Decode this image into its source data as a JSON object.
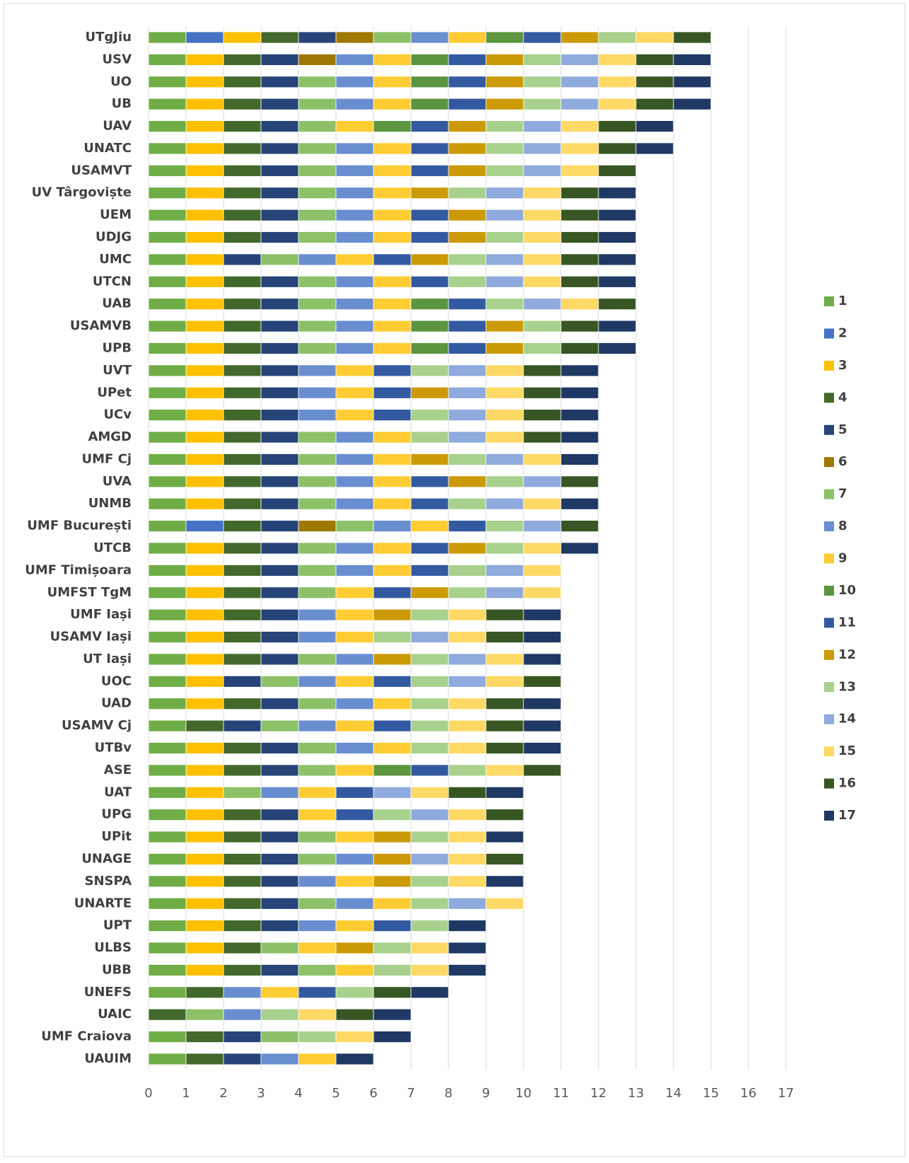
{
  "chart_data": {
    "type": "stacked_barh",
    "categories": [
      "UTgJiu",
      "USV",
      "UO",
      "UB",
      "UAV",
      "UNATC",
      "USAMVT",
      "UV Târgoviște",
      "UEM",
      "UDJG",
      "UMC",
      "UTCN",
      "UAB",
      "USAMVB",
      "UPB",
      "UVT",
      "UPet",
      "UCv",
      "AMGD",
      "UMF Cj",
      "UVA",
      "UNMB",
      "UMF București",
      "UTCB",
      "UMF Timișoara",
      "UMFST TgM",
      "UMF Iași",
      "USAMV Iași",
      "UT Iași",
      "UOC",
      "UAD",
      "USAMV Cj",
      "UTBv",
      "ASE",
      "UAT",
      "UPG",
      "UPit",
      "UNAGE",
      "SNSPA",
      "UNARTE",
      "UPT",
      "ULBS",
      "UBB",
      "UNEFS",
      "UAIC",
      "UMF Craiova",
      "UAUIM"
    ],
    "series": [
      {
        "name": "1",
        "color": "#70ad47",
        "values": [
          1,
          1,
          1,
          1,
          1,
          1,
          1,
          1,
          1,
          1,
          1,
          1,
          1,
          1,
          1,
          1,
          1,
          1,
          1,
          1,
          1,
          1,
          1,
          1,
          1,
          1,
          1,
          1,
          1,
          1,
          1,
          1,
          1,
          1,
          1,
          1,
          1,
          1,
          1,
          1,
          1,
          1,
          1,
          1,
          0,
          1,
          1
        ]
      },
      {
        "name": "2",
        "color": "#4472c4",
        "values": [
          1,
          0,
          0,
          0,
          0,
          0,
          0,
          0,
          0,
          0,
          0,
          0,
          0,
          0,
          0,
          0,
          0,
          0,
          0,
          0,
          0,
          0,
          1,
          0,
          0,
          0,
          0,
          0,
          0,
          0,
          0,
          0,
          0,
          0,
          0,
          0,
          0,
          0,
          0,
          0,
          0,
          0,
          0,
          0,
          0,
          0,
          0
        ]
      },
      {
        "name": "3",
        "color": "#ffc000",
        "values": [
          1,
          1,
          1,
          1,
          1,
          1,
          1,
          1,
          1,
          1,
          1,
          1,
          1,
          1,
          1,
          1,
          1,
          1,
          1,
          1,
          1,
          1,
          0,
          1,
          1,
          1,
          1,
          1,
          1,
          1,
          1,
          0,
          1,
          1,
          1,
          1,
          1,
          1,
          1,
          1,
          1,
          1,
          1,
          0,
          0,
          0,
          0
        ]
      },
      {
        "name": "4",
        "color": "#43682b",
        "values": [
          1,
          1,
          1,
          1,
          1,
          1,
          1,
          1,
          1,
          1,
          0,
          1,
          1,
          1,
          1,
          1,
          1,
          1,
          1,
          1,
          1,
          1,
          1,
          1,
          1,
          1,
          1,
          1,
          1,
          0,
          1,
          1,
          1,
          1,
          0,
          1,
          1,
          1,
          1,
          1,
          1,
          1,
          1,
          1,
          1,
          1,
          1
        ]
      },
      {
        "name": "5",
        "color": "#264478",
        "values": [
          1,
          1,
          1,
          1,
          1,
          1,
          1,
          1,
          1,
          1,
          1,
          1,
          1,
          1,
          1,
          1,
          1,
          1,
          1,
          1,
          1,
          1,
          1,
          1,
          1,
          1,
          1,
          1,
          1,
          1,
          1,
          1,
          1,
          1,
          0,
          1,
          1,
          1,
          1,
          1,
          1,
          0,
          1,
          0,
          0,
          1,
          1
        ]
      },
      {
        "name": "6",
        "color": "#9e7800",
        "values": [
          1,
          1,
          0,
          0,
          0,
          0,
          0,
          0,
          0,
          0,
          0,
          0,
          0,
          0,
          0,
          0,
          0,
          0,
          0,
          0,
          0,
          0,
          1,
          0,
          0,
          0,
          0,
          0,
          0,
          0,
          0,
          0,
          0,
          0,
          0,
          0,
          0,
          0,
          0,
          0,
          0,
          0,
          0,
          0,
          0,
          0,
          0
        ]
      },
      {
        "name": "7",
        "color": "#8cc168",
        "values": [
          1,
          0,
          1,
          1,
          1,
          1,
          1,
          1,
          1,
          1,
          1,
          1,
          1,
          1,
          1,
          0,
          0,
          0,
          1,
          1,
          1,
          1,
          1,
          1,
          1,
          1,
          0,
          0,
          1,
          1,
          1,
          1,
          1,
          1,
          1,
          0,
          1,
          1,
          0,
          1,
          0,
          1,
          1,
          0,
          1,
          1,
          0
        ]
      },
      {
        "name": "8",
        "color": "#698ed0",
        "values": [
          1,
          1,
          1,
          1,
          0,
          1,
          1,
          1,
          1,
          1,
          1,
          1,
          1,
          1,
          1,
          1,
          1,
          1,
          1,
          1,
          1,
          1,
          1,
          1,
          1,
          0,
          1,
          1,
          1,
          1,
          1,
          1,
          1,
          0,
          1,
          0,
          0,
          1,
          1,
          1,
          1,
          0,
          0,
          1,
          1,
          0,
          1
        ]
      },
      {
        "name": "9",
        "color": "#ffcd33",
        "values": [
          1,
          1,
          1,
          1,
          1,
          1,
          1,
          1,
          1,
          1,
          1,
          1,
          1,
          1,
          1,
          1,
          1,
          1,
          1,
          1,
          1,
          1,
          1,
          1,
          1,
          1,
          1,
          1,
          0,
          1,
          1,
          1,
          1,
          1,
          1,
          1,
          1,
          0,
          1,
          1,
          1,
          1,
          1,
          1,
          0,
          0,
          1
        ]
      },
      {
        "name": "10",
        "color": "#5b9540",
        "values": [
          1,
          1,
          1,
          1,
          1,
          0,
          0,
          0,
          0,
          0,
          0,
          0,
          1,
          1,
          1,
          0,
          0,
          0,
          0,
          0,
          0,
          0,
          0,
          0,
          0,
          0,
          0,
          0,
          0,
          0,
          0,
          0,
          0,
          1,
          0,
          0,
          0,
          0,
          0,
          0,
          0,
          0,
          0,
          0,
          0,
          0,
          0
        ]
      },
      {
        "name": "11",
        "color": "#335aa1",
        "values": [
          1,
          1,
          1,
          1,
          1,
          1,
          1,
          0,
          1,
          1,
          1,
          1,
          1,
          1,
          1,
          1,
          1,
          1,
          0,
          0,
          1,
          1,
          1,
          1,
          1,
          1,
          0,
          0,
          0,
          1,
          0,
          1,
          0,
          1,
          1,
          1,
          0,
          0,
          0,
          0,
          1,
          0,
          0,
          1,
          0,
          0,
          0
        ]
      },
      {
        "name": "12",
        "color": "#cc9a06",
        "values": [
          1,
          1,
          1,
          1,
          1,
          1,
          1,
          1,
          1,
          1,
          1,
          0,
          0,
          1,
          1,
          0,
          1,
          0,
          0,
          1,
          1,
          0,
          0,
          1,
          0,
          1,
          1,
          0,
          1,
          0,
          0,
          0,
          0,
          0,
          0,
          0,
          1,
          1,
          1,
          0,
          0,
          1,
          0,
          0,
          0,
          0,
          0
        ]
      },
      {
        "name": "13",
        "color": "#a9d18e",
        "values": [
          1,
          1,
          1,
          1,
          1,
          1,
          1,
          1,
          0,
          1,
          1,
          1,
          1,
          1,
          1,
          1,
          0,
          1,
          1,
          1,
          1,
          1,
          1,
          1,
          1,
          1,
          1,
          1,
          1,
          1,
          1,
          1,
          1,
          1,
          0,
          1,
          1,
          0,
          1,
          1,
          1,
          1,
          1,
          1,
          1,
          1,
          0
        ]
      },
      {
        "name": "14",
        "color": "#8faadc",
        "values": [
          0,
          1,
          1,
          1,
          1,
          1,
          1,
          1,
          1,
          0,
          1,
          1,
          1,
          0,
          0,
          1,
          1,
          1,
          1,
          1,
          1,
          1,
          1,
          0,
          1,
          1,
          0,
          1,
          1,
          1,
          0,
          0,
          0,
          0,
          1,
          1,
          0,
          1,
          0,
          1,
          0,
          0,
          0,
          0,
          0,
          0,
          0
        ]
      },
      {
        "name": "15",
        "color": "#ffd966",
        "values": [
          1,
          1,
          1,
          1,
          1,
          1,
          1,
          1,
          1,
          1,
          1,
          1,
          1,
          0,
          0,
          1,
          1,
          1,
          1,
          1,
          0,
          1,
          0,
          1,
          1,
          1,
          1,
          1,
          1,
          1,
          1,
          1,
          1,
          1,
          1,
          1,
          1,
          1,
          1,
          1,
          0,
          1,
          1,
          0,
          1,
          1,
          0
        ]
      },
      {
        "name": "16",
        "color": "#375623",
        "values": [
          1,
          1,
          1,
          1,
          1,
          1,
          1,
          1,
          1,
          1,
          1,
          1,
          1,
          1,
          1,
          1,
          1,
          1,
          1,
          0,
          1,
          0,
          1,
          0,
          0,
          0,
          1,
          1,
          0,
          1,
          1,
          1,
          1,
          1,
          1,
          1,
          0,
          1,
          0,
          0,
          0,
          0,
          0,
          1,
          1,
          0,
          0
        ]
      },
      {
        "name": "17",
        "color": "#1f3864",
        "values": [
          0,
          1,
          1,
          1,
          1,
          1,
          0,
          1,
          1,
          1,
          1,
          1,
          0,
          1,
          1,
          1,
          1,
          1,
          1,
          1,
          0,
          1,
          0,
          1,
          0,
          0,
          1,
          1,
          1,
          0,
          1,
          1,
          1,
          0,
          1,
          0,
          1,
          0,
          1,
          0,
          1,
          1,
          1,
          1,
          1,
          1,
          1
        ]
      }
    ],
    "xlim": [
      0,
      17
    ],
    "xticks": [
      0,
      1,
      2,
      3,
      4,
      5,
      6,
      7,
      8,
      9,
      10,
      11,
      12,
      13,
      14,
      15,
      16,
      17
    ],
    "grid": true,
    "legend": "right"
  }
}
